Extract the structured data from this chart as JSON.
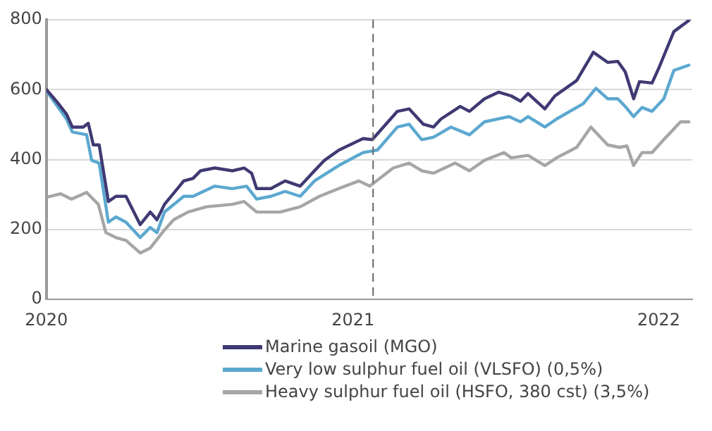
{
  "chart_data": {
    "type": "line",
    "legend": "bottom",
    "grid": "y",
    "marker": "none",
    "line_style": "solid",
    "xlim": [
      "2020-01-01",
      "2022-02-10"
    ],
    "xticks": [
      {
        "value": "2020-01-01",
        "label": "2020"
      },
      {
        "value": "2021-01-01",
        "label": "2021"
      },
      {
        "value": "2022-01-01",
        "label": "2022"
      }
    ],
    "ylim": [
      0,
      800
    ],
    "yticks": [
      0,
      200,
      400,
      600,
      800
    ],
    "ref_lines": [
      {
        "axis": "x",
        "value": "2021-01-25",
        "line_style": "dashed",
        "color": "#666666"
      }
    ],
    "series": [
      {
        "name": "Marine gasoil (MGO)",
        "color": "#3f3a73",
        "x": [
          "2020-01-01",
          "2020-01-13",
          "2020-01-25",
          "2020-02-01",
          "2020-02-14",
          "2020-02-20",
          "2020-02-26",
          "2020-03-04",
          "2020-03-15",
          "2020-03-24",
          "2020-04-05",
          "2020-04-22",
          "2020-05-04",
          "2020-05-12",
          "2020-05-21",
          "2020-06-13",
          "2020-06-24",
          "2020-07-03",
          "2020-07-20",
          "2020-08-10",
          "2020-08-24",
          "2020-09-02",
          "2020-09-08",
          "2020-09-25",
          "2020-10-12",
          "2020-10-30",
          "2020-11-16",
          "2020-11-28",
          "2020-12-15",
          "2021-01-13",
          "2021-01-24",
          "2021-02-23",
          "2021-03-09",
          "2021-03-26",
          "2021-04-07",
          "2021-04-16",
          "2021-05-09",
          "2021-05-20",
          "2021-06-07",
          "2021-06-24",
          "2021-07-09",
          "2021-07-20",
          "2021-07-29",
          "2021-08-18",
          "2021-08-30",
          "2021-09-25",
          "2021-10-15",
          "2021-11-01",
          "2021-11-13",
          "2021-11-22",
          "2021-12-02",
          "2021-12-09",
          "2021-12-24",
          "2022-01-02",
          "2022-01-19",
          "2022-02-06"
        ],
        "values": [
          600,
          567,
          530,
          493,
          493,
          504,
          442,
          442,
          280,
          295,
          295,
          214,
          250,
          228,
          272,
          339,
          346,
          368,
          376,
          368,
          376,
          361,
          317,
          317,
          339,
          324,
          368,
          398,
          427,
          460,
          457,
          538,
          545,
          501,
          493,
          516,
          552,
          538,
          574,
          593,
          582,
          567,
          589,
          545,
          582,
          626,
          707,
          678,
          681,
          651,
          574,
          623,
          619,
          667,
          766,
          798
        ]
      },
      {
        "name": "Very low sulphur fuel oil (VLSFO) (0,5%)",
        "color": "#5ba8d0",
        "x": [
          "2020-01-01",
          "2020-01-25",
          "2020-02-01",
          "2020-02-18",
          "2020-02-24",
          "2020-03-04",
          "2020-03-15",
          "2020-03-24",
          "2020-04-05",
          "2020-04-22",
          "2020-05-04",
          "2020-05-12",
          "2020-05-21",
          "2020-06-13",
          "2020-06-24",
          "2020-07-20",
          "2020-08-10",
          "2020-08-27",
          "2020-09-08",
          "2020-09-25",
          "2020-10-12",
          "2020-10-30",
          "2020-11-16",
          "2020-12-15",
          "2021-01-13",
          "2021-01-30",
          "2021-02-23",
          "2021-03-09",
          "2021-03-24",
          "2021-04-07",
          "2021-04-28",
          "2021-05-20",
          "2021-06-07",
          "2021-07-06",
          "2021-07-20",
          "2021-07-29",
          "2021-08-18",
          "2021-09-01",
          "2021-10-03",
          "2021-10-18",
          "2021-11-01",
          "2021-11-13",
          "2021-11-22",
          "2021-12-02",
          "2021-12-12",
          "2021-12-24",
          "2022-01-07",
          "2022-01-19",
          "2022-02-06"
        ],
        "values": [
          597,
          516,
          479,
          471,
          398,
          390,
          221,
          236,
          221,
          177,
          206,
          191,
          250,
          295,
          295,
          324,
          317,
          324,
          287,
          295,
          309,
          295,
          339,
          383,
          420,
          427,
          493,
          501,
          457,
          464,
          493,
          471,
          508,
          523,
          508,
          523,
          493,
          516,
          560,
          604,
          574,
          574,
          552,
          523,
          549,
          538,
          574,
          655,
          670
        ]
      },
      {
        "name": "Heavy sulphur fuel oil (HSFO, 380 cst) (3,5%)",
        "color": "#a6a6a6",
        "x": [
          "2020-01-01",
          "2020-01-18",
          "2020-01-31",
          "2020-02-18",
          "2020-03-03",
          "2020-03-12",
          "2020-03-24",
          "2020-04-05",
          "2020-04-22",
          "2020-05-04",
          "2020-05-21",
          "2020-06-01",
          "2020-06-18",
          "2020-07-10",
          "2020-08-10",
          "2020-08-24",
          "2020-09-08",
          "2020-10-06",
          "2020-10-30",
          "2020-11-22",
          "2020-12-15",
          "2021-01-08",
          "2021-01-21",
          "2021-02-18",
          "2021-03-09",
          "2021-03-24",
          "2021-04-07",
          "2021-05-03",
          "2021-05-20",
          "2021-06-07",
          "2021-06-30",
          "2021-07-09",
          "2021-07-29",
          "2021-08-18",
          "2021-09-01",
          "2021-09-25",
          "2021-10-12",
          "2021-11-01",
          "2021-11-15",
          "2021-11-24",
          "2021-12-02",
          "2021-12-12",
          "2021-12-24",
          "2022-01-07",
          "2022-01-27",
          "2022-02-06"
        ],
        "values": [
          292,
          302,
          287,
          306,
          272,
          191,
          177,
          169,
          133,
          147,
          199,
          228,
          250,
          265,
          272,
          280,
          250,
          250,
          265,
          295,
          317,
          339,
          324,
          376,
          390,
          368,
          361,
          390,
          368,
          398,
          420,
          405,
          412,
          383,
          405,
          435,
          493,
          442,
          435,
          439,
          383,
          420,
          420,
          457,
          508,
          508
        ]
      }
    ]
  }
}
